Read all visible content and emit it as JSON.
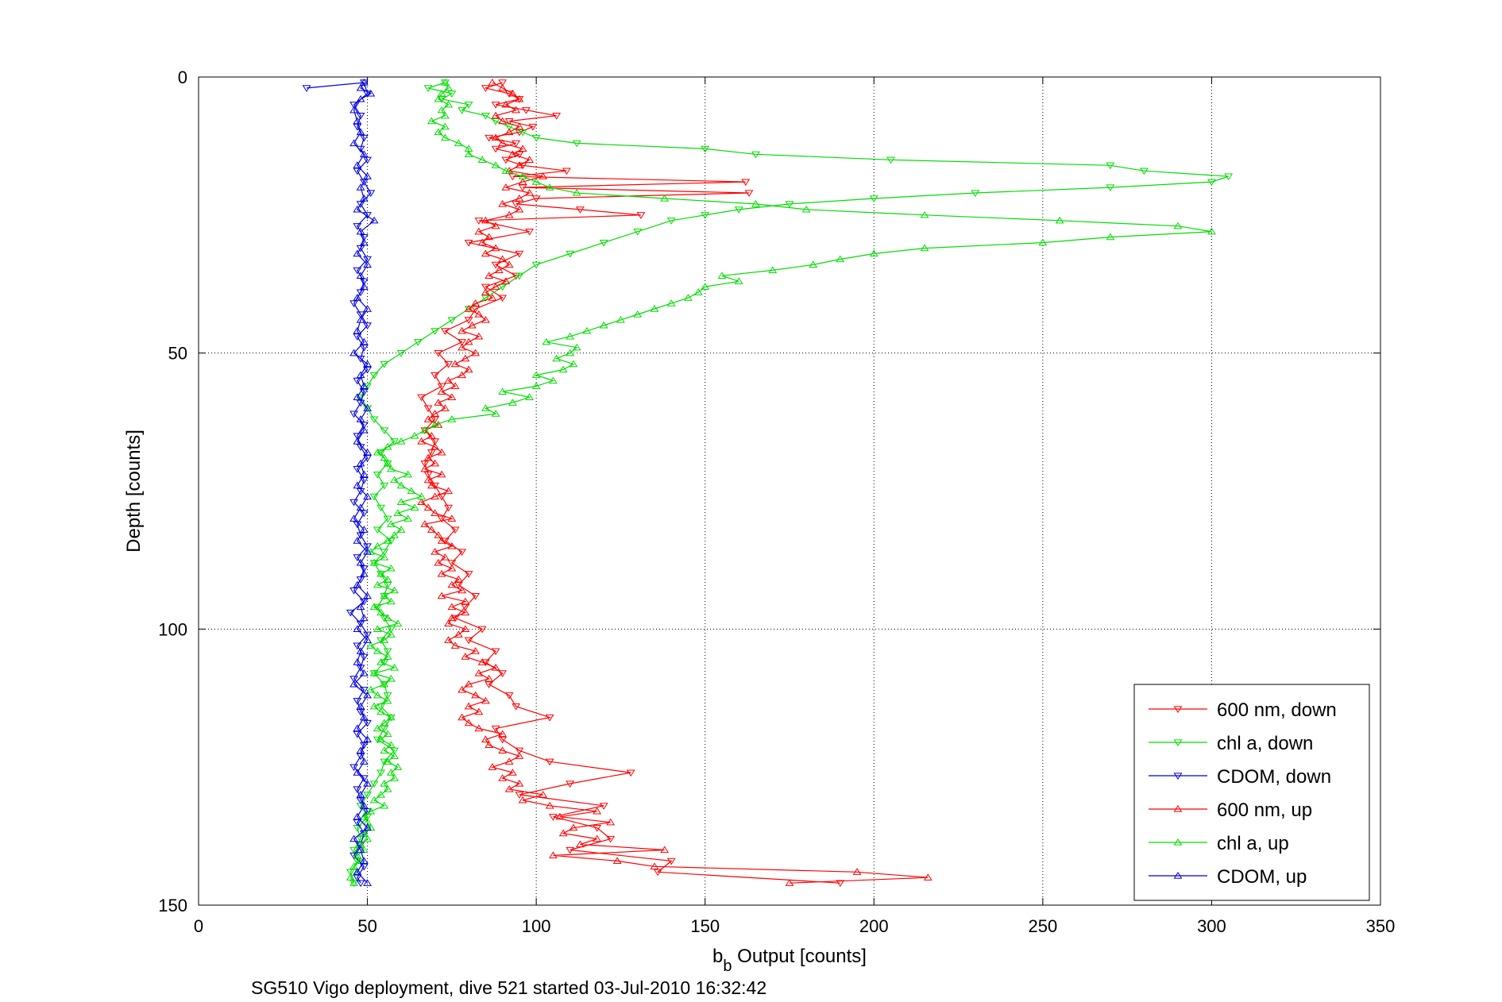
{
  "chart_data": {
    "type": "line",
    "xlabel": "b",
    "xlabel_sub": "b",
    "xlabel_rest": " Output [counts]",
    "ylabel": "Depth [counts]",
    "caption": "SG510 Vigo deployment, dive 521 started 03-Jul-2010 16:32:42",
    "xlim": [
      0,
      350
    ],
    "ylim": [
      0,
      150
    ],
    "y_reversed": true,
    "grid": true,
    "legend_position": "bottom-right",
    "x_ticks": [
      "0",
      "50",
      "100",
      "150",
      "200",
      "250",
      "300",
      "350"
    ],
    "y_ticks": [
      "0",
      "50",
      "100",
      "150"
    ],
    "series": [
      {
        "name": "600 nm, down",
        "color": "#ff0000",
        "marker": "triangle-down",
        "y": [
          1,
          2,
          3,
          4,
          5,
          6,
          7,
          8,
          9,
          10,
          11,
          12,
          13,
          14,
          15,
          16,
          17,
          18,
          19,
          20,
          21,
          22,
          23,
          24,
          25,
          26,
          28,
          30,
          32,
          34,
          36,
          38,
          40,
          42,
          44,
          46,
          48,
          50,
          52,
          54,
          56,
          58,
          60,
          62,
          64,
          66,
          68,
          70,
          72,
          74,
          76,
          78,
          80,
          82,
          84,
          86,
          88,
          90,
          92,
          94,
          96,
          98,
          100,
          102,
          104,
          106,
          108,
          110,
          112,
          114,
          116,
          118,
          120,
          122,
          124,
          126,
          128,
          130,
          132,
          134,
          136,
          138,
          140,
          142,
          144,
          146
        ],
        "x": [
          90,
          85,
          92,
          95,
          88,
          97,
          106,
          92,
          99,
          95,
          86,
          94,
          88,
          95,
          91,
          96,
          109,
          93,
          162,
          96,
          163,
          100,
          94,
          113,
          131,
          83,
          98,
          80,
          95,
          88,
          94,
          85,
          90,
          82,
          80,
          73,
          78,
          71,
          74,
          70,
          72,
          66,
          68,
          70,
          67,
          70,
          69,
          67,
          68,
          70,
          72,
          74,
          72,
          76,
          73,
          78,
          75,
          80,
          77,
          82,
          79,
          76,
          84,
          80,
          88,
          85,
          90,
          86,
          92,
          94,
          104,
          88,
          90,
          95,
          104,
          128,
          110,
          95,
          120,
          105,
          118,
          122,
          110,
          140,
          136,
          190
        ]
      },
      {
        "name": "chl a, down",
        "color": "#00dd00",
        "marker": "triangle-down",
        "y": [
          1,
          2,
          3,
          4,
          5,
          6,
          7,
          8,
          9,
          10,
          11,
          12,
          13,
          14,
          15,
          16,
          17,
          18,
          19,
          20,
          21,
          22,
          23,
          24,
          25,
          26,
          28,
          30,
          32,
          34,
          36,
          38,
          40,
          42,
          44,
          46,
          48,
          50,
          52,
          54,
          56,
          58,
          60,
          62,
          64,
          66,
          68,
          70,
          72,
          74,
          76,
          78,
          80,
          82,
          84,
          86,
          88,
          90,
          92,
          94,
          96,
          98,
          100,
          102,
          104,
          106,
          108,
          110,
          112,
          114,
          116,
          118,
          120,
          122,
          124,
          126,
          128,
          130,
          132,
          134,
          136,
          138,
          140,
          142,
          144,
          146
        ],
        "x": [
          73,
          68,
          75,
          72,
          80,
          78,
          85,
          88,
          92,
          96,
          100,
          112,
          150,
          165,
          205,
          270,
          280,
          305,
          300,
          270,
          230,
          200,
          175,
          160,
          150,
          140,
          130,
          120,
          110,
          100,
          95,
          90,
          85,
          80,
          75,
          70,
          65,
          60,
          55,
          52,
          50,
          48,
          50,
          52,
          55,
          58,
          54,
          56,
          53,
          55,
          52,
          54,
          56,
          53,
          57,
          55,
          52,
          54,
          56,
          55,
          53,
          55,
          57,
          54,
          56,
          55,
          52,
          55,
          56,
          54,
          57,
          55,
          53,
          58,
          55,
          54,
          52,
          50,
          48,
          50,
          47,
          48,
          46,
          47,
          45,
          46
        ]
      },
      {
        "name": "CDOM, down",
        "color": "#0000dd",
        "marker": "triangle-down",
        "y": [
          2,
          1,
          3,
          5,
          7,
          9,
          11,
          13,
          15,
          17,
          19,
          21,
          23,
          25,
          27,
          29,
          31,
          33,
          35,
          37,
          39,
          41,
          43,
          45,
          47,
          49,
          51,
          53,
          55,
          57,
          59,
          61,
          63,
          65,
          67,
          69,
          71,
          73,
          75,
          77,
          79,
          81,
          83,
          85,
          87,
          89,
          91,
          93,
          95,
          97,
          99,
          101,
          103,
          105,
          107,
          109,
          111,
          113,
          115,
          117,
          119,
          121,
          123,
          125,
          127,
          129,
          131,
          133,
          135,
          137,
          139,
          141,
          143,
          145,
          146
        ],
        "x": [
          32,
          49,
          50,
          46,
          48,
          47,
          49,
          48,
          50,
          47,
          49,
          51,
          48,
          50,
          47,
          49,
          48,
          50,
          47,
          49,
          48,
          46,
          48,
          50,
          47,
          49,
          48,
          50,
          47,
          49,
          48,
          46,
          49,
          47,
          48,
          50,
          47,
          49,
          48,
          46,
          49,
          47,
          48,
          50,
          47,
          49,
          48,
          46,
          49,
          45,
          48,
          50,
          47,
          49,
          48,
          46,
          49,
          47,
          48,
          50,
          47,
          49,
          48,
          46,
          49,
          47,
          48,
          50,
          47,
          49,
          48,
          46,
          49,
          47,
          48
        ]
      },
      {
        "name": "600 nm, up",
        "color": "#ff0000",
        "marker": "triangle-up",
        "y": [
          146,
          145,
          144,
          143,
          142,
          141,
          140,
          139,
          138,
          137,
          136,
          135,
          134,
          133,
          132,
          131,
          130,
          129,
          128,
          127,
          126,
          125,
          124,
          123,
          122,
          121,
          120,
          119,
          118,
          117,
          116,
          115,
          114,
          113,
          112,
          111,
          110,
          109,
          108,
          107,
          106,
          105,
          104,
          103,
          102,
          101,
          100,
          99,
          98,
          97,
          96,
          95,
          94,
          93,
          92,
          91,
          90,
          89,
          88,
          87,
          86,
          85,
          84,
          83,
          82,
          81,
          80,
          79,
          78,
          77,
          76,
          75,
          74,
          73,
          72,
          71,
          70,
          69,
          68,
          67,
          66,
          65,
          64,
          63,
          62,
          61,
          60,
          59,
          58,
          57,
          56,
          55,
          54,
          53,
          52,
          51,
          50,
          49,
          48,
          47,
          46,
          45,
          44,
          43,
          42,
          41,
          40,
          39,
          38,
          37,
          36,
          35,
          34,
          33,
          32,
          31,
          30,
          29,
          28,
          27,
          26,
          25,
          24,
          23,
          22,
          21,
          20,
          19,
          18,
          17,
          16,
          15,
          14,
          13,
          12,
          11,
          10,
          9,
          8,
          7,
          6,
          5,
          4,
          3,
          2,
          1
        ],
        "x": [
          175,
          216,
          195,
          135,
          124,
          105,
          138,
          113,
          118,
          108,
          111,
          122,
          107,
          118,
          104,
          96,
          102,
          92,
          95,
          90,
          93,
          87,
          92,
          95,
          90,
          86,
          85,
          90,
          83,
          80,
          78,
          83,
          80,
          85,
          82,
          78,
          80,
          86,
          83,
          88,
          84,
          79,
          82,
          76,
          74,
          77,
          79,
          74,
          75,
          79,
          75,
          79,
          72,
          78,
          75,
          77,
          72,
          75,
          71,
          73,
          70,
          75,
          72,
          71,
          69,
          67,
          75,
          70,
          68,
          66,
          70,
          74,
          69,
          68,
          72,
          67,
          70,
          68,
          72,
          70,
          66,
          69,
          67,
          71,
          68,
          70,
          73,
          71,
          75,
          72,
          76,
          74,
          78,
          80,
          76,
          79,
          82,
          78,
          80,
          83,
          78,
          81,
          85,
          83,
          80,
          82,
          87,
          85,
          88,
          91,
          86,
          89,
          92,
          90,
          85,
          88,
          84,
          86,
          83,
          88,
          85,
          92,
          95,
          90,
          95,
          98,
          91,
          96,
          102,
          92,
          95,
          98,
          93,
          96,
          90,
          88,
          92,
          95,
          90,
          88,
          94,
          91,
          95,
          93,
          90,
          87
        ]
      },
      {
        "name": "chl a, up",
        "color": "#00dd00",
        "marker": "triangle-up",
        "y": [
          146,
          145,
          144,
          143,
          142,
          141,
          140,
          139,
          138,
          137,
          136,
          135,
          134,
          133,
          132,
          131,
          130,
          129,
          128,
          127,
          126,
          125,
          124,
          123,
          122,
          121,
          120,
          119,
          118,
          117,
          116,
          115,
          114,
          113,
          112,
          111,
          110,
          109,
          108,
          107,
          106,
          105,
          104,
          103,
          102,
          101,
          100,
          99,
          98,
          97,
          96,
          95,
          94,
          93,
          92,
          91,
          90,
          89,
          88,
          87,
          86,
          85,
          84,
          83,
          82,
          81,
          80,
          79,
          78,
          77,
          76,
          75,
          74,
          73,
          72,
          71,
          70,
          69,
          68,
          67,
          66,
          65,
          64,
          63,
          62,
          61,
          60,
          59,
          58,
          57,
          56,
          55,
          54,
          53,
          52,
          51,
          50,
          49,
          48,
          47,
          46,
          45,
          44,
          43,
          42,
          41,
          40,
          39,
          38,
          37,
          36,
          35,
          34,
          33,
          32,
          31,
          30,
          29,
          28,
          27,
          26,
          25,
          24,
          23,
          22,
          21,
          20,
          19,
          18,
          17,
          16,
          15,
          14,
          13,
          12,
          11,
          10,
          9,
          8,
          7,
          6,
          5,
          4,
          3,
          2,
          1
        ],
        "x": [
          46,
          45,
          47,
          46,
          48,
          47,
          49,
          48,
          50,
          49,
          51,
          50,
          49,
          51,
          55,
          52,
          54,
          56,
          55,
          58,
          57,
          59,
          56,
          58,
          55,
          57,
          54,
          56,
          53,
          55,
          57,
          54,
          52,
          56,
          53,
          51,
          55,
          57,
          52,
          58,
          54,
          56,
          53,
          51,
          55,
          57,
          53,
          59,
          56,
          54,
          52,
          57,
          55,
          58,
          53,
          56,
          54,
          57,
          52,
          55,
          51,
          53,
          56,
          58,
          60,
          57,
          62,
          59,
          64,
          60,
          66,
          63,
          60,
          58,
          62,
          57,
          56,
          55,
          53,
          56,
          60,
          64,
          67,
          70,
          75,
          88,
          85,
          93,
          98,
          90,
          100,
          105,
          100,
          108,
          111,
          106,
          110,
          112,
          103,
          110,
          115,
          120,
          125,
          130,
          135,
          140,
          145,
          148,
          150,
          160,
          155,
          170,
          182,
          190,
          200,
          215,
          250,
          270,
          300,
          290,
          255,
          215,
          180,
          165,
          138,
          112,
          104,
          100,
          96,
          91,
          88,
          84,
          80,
          80,
          77,
          73,
          71,
          73,
          69,
          73,
          72,
          74,
          71,
          72,
          74,
          73
        ]
      },
      {
        "name": "CDOM, up",
        "color": "#0000dd",
        "marker": "triangle-up",
        "y": [
          146,
          144,
          142,
          140,
          138,
          136,
          134,
          132,
          130,
          128,
          126,
          124,
          122,
          120,
          118,
          116,
          114,
          112,
          110,
          108,
          106,
          104,
          102,
          100,
          98,
          96,
          94,
          92,
          90,
          88,
          86,
          84,
          82,
          80,
          78,
          76,
          74,
          72,
          70,
          68,
          66,
          64,
          62,
          60,
          58,
          56,
          54,
          52,
          50,
          48,
          46,
          44,
          42,
          40,
          38,
          36,
          34,
          32,
          30,
          28,
          26,
          24,
          22,
          20,
          18,
          16,
          14,
          12,
          10,
          8,
          6,
          4,
          3,
          2,
          1
        ],
        "x": [
          50,
          47,
          49,
          48,
          46,
          50,
          47,
          49,
          48,
          50,
          47,
          49,
          48,
          50,
          47,
          49,
          48,
          50,
          46,
          49,
          47,
          48,
          50,
          47,
          49,
          48,
          50,
          47,
          49,
          48,
          50,
          47,
          49,
          46,
          48,
          50,
          47,
          49,
          48,
          50,
          47,
          49,
          48,
          50,
          47,
          49,
          48,
          50,
          46,
          49,
          47,
          48,
          50,
          47,
          49,
          48,
          50,
          47,
          49,
          48,
          52,
          47,
          49,
          48,
          50,
          47,
          49,
          46,
          48,
          47,
          46,
          48,
          51,
          48,
          49
        ]
      }
    ]
  }
}
